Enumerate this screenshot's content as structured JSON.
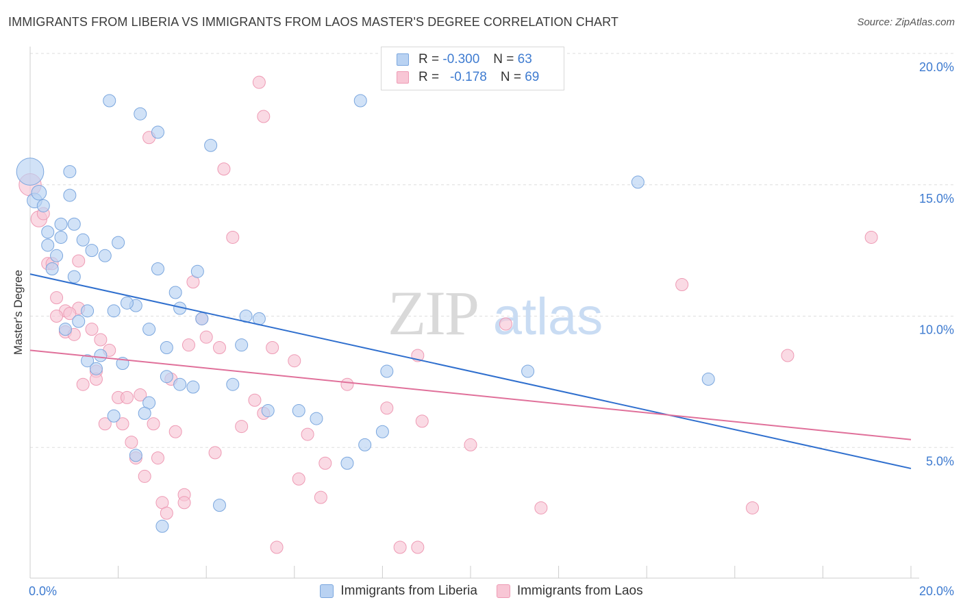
{
  "title": "IMMIGRANTS FROM LIBERIA VS IMMIGRANTS FROM LAOS MASTER'S DEGREE CORRELATION CHART",
  "source": "Source: ZipAtlas.com",
  "watermark": {
    "zip": "ZIP",
    "atlas": "atlas"
  },
  "legend": {
    "r_label": "R =",
    "n_label": "N =",
    "liberia": {
      "r": "-0.300",
      "n": "63"
    },
    "laos": {
      "r": "-0.178",
      "n": "69"
    }
  },
  "colors": {
    "liberia_fill": "#b9d2f2",
    "liberia_stroke": "#7aa6de",
    "liberia_line": "#2f6fce",
    "laos_fill": "#f8c6d5",
    "laos_stroke": "#ee9ab4",
    "laos_line": "#e0709a",
    "axis_text": "#3e7bd0",
    "grid": "#dddddd"
  },
  "chart_data": {
    "type": "scatter",
    "title": "IMMIGRANTS FROM LIBERIA VS IMMIGRANTS FROM LAOS MASTER'S DEGREE CORRELATION CHART",
    "xlabel": "",
    "ylabel": "Master's Degree",
    "xlim": [
      0,
      20
    ],
    "ylim": [
      0,
      20.5
    ],
    "x_tick_labels": [
      "0.0%",
      "20.0%"
    ],
    "y_ticks": [
      {
        "value": 5,
        "label": "5.0%"
      },
      {
        "value": 10,
        "label": "10.0%"
      },
      {
        "value": 15,
        "label": "15.0%"
      },
      {
        "value": 20,
        "label": "20.0%"
      }
    ],
    "grid": true,
    "legend_position": "top-center",
    "series": [
      {
        "name": "Immigrants from Liberia",
        "r": -0.3,
        "n": 63,
        "trend": {
          "x0": 0,
          "y0": 11.6,
          "x1": 20,
          "y1": 4.2
        },
        "points": [
          [
            0.0,
            15.5,
            2.2
          ],
          [
            0.1,
            14.4,
            1.2
          ],
          [
            0.2,
            14.7,
            1.2
          ],
          [
            0.9,
            15.5,
            1
          ],
          [
            0.9,
            14.6,
            1
          ],
          [
            1.8,
            18.2,
            1
          ],
          [
            2.5,
            17.7,
            1
          ],
          [
            2.9,
            17.0,
            1
          ],
          [
            4.1,
            16.5,
            1
          ],
          [
            7.5,
            18.2,
            1
          ],
          [
            13.8,
            15.1,
            1
          ],
          [
            0.7,
            13.5,
            1
          ],
          [
            1.0,
            13.5,
            1
          ],
          [
            0.4,
            13.2,
            1
          ],
          [
            0.7,
            13.0,
            1
          ],
          [
            1.2,
            12.9,
            1
          ],
          [
            0.4,
            12.7,
            1
          ],
          [
            2.0,
            12.8,
            1
          ],
          [
            0.6,
            12.3,
            1
          ],
          [
            1.7,
            12.3,
            1
          ],
          [
            0.5,
            11.8,
            1
          ],
          [
            2.9,
            11.8,
            1
          ],
          [
            3.8,
            11.7,
            1
          ],
          [
            1.0,
            11.5,
            1
          ],
          [
            3.3,
            10.9,
            1
          ],
          [
            2.4,
            10.4,
            1
          ],
          [
            3.4,
            10.3,
            1
          ],
          [
            1.3,
            10.2,
            1
          ],
          [
            1.9,
            10.2,
            1
          ],
          [
            4.9,
            10.0,
            1
          ],
          [
            3.9,
            9.9,
            1
          ],
          [
            5.2,
            9.9,
            1
          ],
          [
            1.1,
            9.8,
            1
          ],
          [
            0.8,
            9.5,
            1
          ],
          [
            2.7,
            9.5,
            1
          ],
          [
            3.1,
            8.8,
            1
          ],
          [
            4.8,
            8.9,
            1
          ],
          [
            1.6,
            8.5,
            1
          ],
          [
            1.3,
            8.3,
            1
          ],
          [
            2.1,
            8.2,
            1
          ],
          [
            1.5,
            8.0,
            1
          ],
          [
            8.1,
            7.9,
            1
          ],
          [
            11.3,
            7.9,
            1
          ],
          [
            15.4,
            7.6,
            1
          ],
          [
            3.4,
            7.4,
            1
          ],
          [
            3.7,
            7.3,
            1
          ],
          [
            4.6,
            7.4,
            1
          ],
          [
            2.7,
            6.7,
            1
          ],
          [
            5.4,
            6.4,
            1
          ],
          [
            6.1,
            6.4,
            1
          ],
          [
            2.6,
            6.3,
            1
          ],
          [
            1.9,
            6.2,
            1
          ],
          [
            6.5,
            6.1,
            1
          ],
          [
            8.0,
            5.6,
            1
          ],
          [
            7.6,
            5.1,
            1
          ],
          [
            2.4,
            4.7,
            1
          ],
          [
            7.2,
            4.4,
            1
          ],
          [
            3.1,
            7.7,
            1
          ],
          [
            4.3,
            2.8,
            1
          ],
          [
            3.0,
            2.0,
            1
          ],
          [
            0.3,
            14.2,
            1
          ],
          [
            2.2,
            10.5,
            1
          ],
          [
            1.4,
            12.5,
            1
          ]
        ]
      },
      {
        "name": "Immigrants from Laos",
        "r": -0.178,
        "n": 69,
        "trend": {
          "x0": 0,
          "y0": 8.7,
          "x1": 20,
          "y1": 5.3
        },
        "points": [
          [
            0.0,
            15.0,
            1.8
          ],
          [
            0.2,
            13.7,
            1.3
          ],
          [
            0.3,
            13.9,
            1
          ],
          [
            5.2,
            18.9,
            1
          ],
          [
            5.3,
            17.6,
            1
          ],
          [
            2.7,
            16.8,
            1
          ],
          [
            4.4,
            15.6,
            1
          ],
          [
            4.6,
            13.0,
            1
          ],
          [
            19.1,
            13.0,
            1
          ],
          [
            0.4,
            12.0,
            1
          ],
          [
            0.5,
            12.0,
            1
          ],
          [
            3.7,
            11.3,
            1
          ],
          [
            14.8,
            11.2,
            1
          ],
          [
            0.6,
            10.7,
            1
          ],
          [
            0.8,
            10.2,
            1
          ],
          [
            1.1,
            10.3,
            1
          ],
          [
            0.9,
            10.1,
            1
          ],
          [
            0.6,
            10.0,
            1
          ],
          [
            3.9,
            9.9,
            1
          ],
          [
            10.8,
            9.7,
            1
          ],
          [
            0.8,
            9.4,
            1
          ],
          [
            1.4,
            9.5,
            1
          ],
          [
            1.0,
            9.3,
            1
          ],
          [
            4.0,
            9.2,
            1
          ],
          [
            1.6,
            9.1,
            1
          ],
          [
            3.6,
            8.9,
            1
          ],
          [
            4.3,
            8.8,
            1
          ],
          [
            5.5,
            8.8,
            1
          ],
          [
            1.8,
            8.7,
            1
          ],
          [
            8.8,
            8.5,
            1
          ],
          [
            17.2,
            8.5,
            1
          ],
          [
            6.0,
            8.3,
            1
          ],
          [
            1.5,
            7.9,
            1
          ],
          [
            1.5,
            7.6,
            1
          ],
          [
            3.2,
            7.6,
            1
          ],
          [
            1.2,
            7.4,
            1
          ],
          [
            7.2,
            7.4,
            1
          ],
          [
            2.5,
            7.0,
            1
          ],
          [
            2.0,
            6.9,
            1
          ],
          [
            2.2,
            6.9,
            1
          ],
          [
            5.1,
            6.8,
            1
          ],
          [
            8.1,
            6.5,
            1
          ],
          [
            5.3,
            6.3,
            1
          ],
          [
            8.9,
            6.0,
            1
          ],
          [
            1.7,
            5.9,
            1
          ],
          [
            2.1,
            5.9,
            1
          ],
          [
            2.8,
            5.9,
            1
          ],
          [
            4.8,
            5.8,
            1
          ],
          [
            3.3,
            5.6,
            1
          ],
          [
            6.3,
            5.5,
            1
          ],
          [
            2.3,
            5.2,
            1
          ],
          [
            10.0,
            5.1,
            1
          ],
          [
            4.2,
            4.8,
            1
          ],
          [
            2.4,
            4.6,
            1
          ],
          [
            2.9,
            4.6,
            1
          ],
          [
            6.7,
            4.4,
            1
          ],
          [
            2.6,
            3.9,
            1
          ],
          [
            6.1,
            3.8,
            1
          ],
          [
            3.5,
            3.2,
            1
          ],
          [
            6.6,
            3.1,
            1
          ],
          [
            3.0,
            2.9,
            1
          ],
          [
            3.5,
            2.9,
            1
          ],
          [
            11.6,
            2.7,
            1
          ],
          [
            16.4,
            2.7,
            1
          ],
          [
            3.1,
            2.5,
            1
          ],
          [
            5.6,
            1.2,
            1
          ],
          [
            8.4,
            1.2,
            1
          ],
          [
            8.8,
            1.2,
            1
          ],
          [
            1.1,
            12.1,
            1
          ]
        ]
      }
    ]
  }
}
